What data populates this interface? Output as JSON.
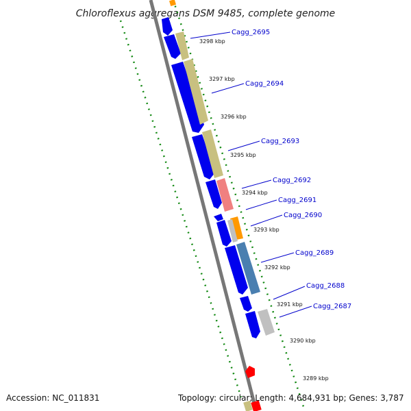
{
  "title": "Chloroflexus aggregans DSM 9485, complete genome",
  "accession": "Accession: NC_011831",
  "topology": "Topology: circular; Length: 4,684,931 bp; Genes: 3,787",
  "colors": {
    "blue_gene": "#0000ee",
    "olive_gene": "#c8c080",
    "orange_gene": "#ff9900",
    "pink_gene": "#f08080",
    "grey_gene": "#c0c0c0",
    "steelblue_gene": "#4a7fb0",
    "red_feature": "#ff0000",
    "dotted_track": "#118811",
    "backbone": "#777777",
    "label_blue": "#0000cc"
  },
  "kbp_labels": [
    "3298 kbp",
    "3297 kbp",
    "3296 kbp",
    "3295 kbp",
    "3294 kbp",
    "3293 kbp",
    "3292 kbp",
    "3291 kbp",
    "3290 kbp",
    "3289 kbp"
  ],
  "genes": [
    {
      "label": "Cagg_2695"
    },
    {
      "label": "Cagg_2694"
    },
    {
      "label": "Cagg_2693"
    },
    {
      "label": "Cagg_2692"
    },
    {
      "label": "Cagg_2691"
    },
    {
      "label": "Cagg_2690"
    },
    {
      "label": "Cagg_2689"
    },
    {
      "label": "Cagg_2688"
    },
    {
      "label": "Cagg_2687"
    }
  ]
}
